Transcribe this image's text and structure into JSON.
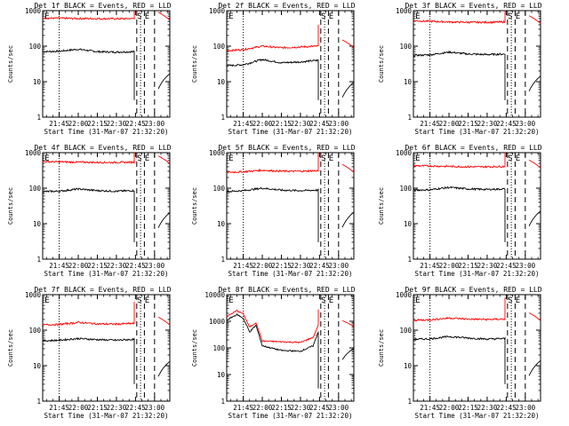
{
  "figure": {
    "x_label": "Start Time (31-Mar-07 21:32:20)",
    "y_label": "Counts/sec",
    "marker_labels": [
      "E",
      "S",
      "E"
    ]
  },
  "colors": {
    "events": "#000000",
    "lld": "#ff0000",
    "axes": "#000000"
  },
  "chart_data": [
    {
      "type": "line",
      "title": "Det 1f BLACK = Events, RED = LLD",
      "ylim": [
        1,
        1000
      ],
      "yscale": "log",
      "y_ticks": [
        "1",
        "10",
        "100",
        "1000"
      ],
      "x_ticks": [
        "21:45",
        "22:00",
        "22:15",
        "22:30",
        "22:45",
        "23:00"
      ],
      "xlim": [
        "21:32",
        "23:12"
      ],
      "vlines_dashed": [
        "22:46",
        "22:52",
        "23:00"
      ],
      "vline_dotted": [
        "21:45",
        "22:49"
      ],
      "series": [
        {
          "name": "Events",
          "x": [
            "21:32",
            "21:45",
            "22:00",
            "22:15",
            "22:30",
            "22:44"
          ],
          "values": [
            70,
            72,
            82,
            70,
            68,
            70
          ]
        },
        {
          "name": "LLD",
          "x": [
            "21:32",
            "21:45",
            "22:00",
            "22:15",
            "22:30",
            "22:44"
          ],
          "values": [
            620,
            610,
            600,
            595,
            590,
            600
          ]
        }
      ]
    },
    {
      "type": "line",
      "title": "Det 2f BLACK = Events, RED = LLD",
      "ylim": [
        1,
        1000
      ],
      "yscale": "log",
      "y_ticks": [
        "1",
        "10",
        "100",
        "1000"
      ],
      "x_ticks": [
        "21:45",
        "22:00",
        "22:15",
        "22:30",
        "22:45",
        "23:00"
      ],
      "xlim": [
        "21:32",
        "23:12"
      ],
      "vlines_dashed": [
        "22:46",
        "22:52",
        "23:00"
      ],
      "vline_dotted": [
        "21:45",
        "22:49"
      ],
      "series": [
        {
          "name": "Events",
          "x": [
            "21:32",
            "21:45",
            "22:00",
            "22:15",
            "22:30",
            "22:44"
          ],
          "values": [
            28,
            30,
            42,
            34,
            36,
            40
          ]
        },
        {
          "name": "LLD",
          "x": [
            "21:32",
            "21:45",
            "22:00",
            "22:15",
            "22:30",
            "22:44"
          ],
          "values": [
            75,
            80,
            100,
            90,
            95,
            100
          ]
        }
      ]
    },
    {
      "type": "line",
      "title": "Det 3f BLACK = Events, RED = LLD",
      "ylim": [
        1,
        1000
      ],
      "yscale": "log",
      "y_ticks": [
        "1",
        "10",
        "100",
        "1000"
      ],
      "x_ticks": [
        "21:45",
        "22:00",
        "22:15",
        "22:30",
        "22:45",
        "23:00"
      ],
      "xlim": [
        "21:32",
        "23:12"
      ],
      "vlines_dashed": [
        "22:46",
        "22:52",
        "23:00"
      ],
      "vline_dotted": [
        "21:45",
        "22:49"
      ],
      "series": [
        {
          "name": "Events",
          "x": [
            "21:32",
            "21:45",
            "22:00",
            "22:15",
            "22:30",
            "22:44"
          ],
          "values": [
            55,
            57,
            68,
            60,
            58,
            60
          ]
        },
        {
          "name": "LLD",
          "x": [
            "21:32",
            "21:45",
            "22:00",
            "22:15",
            "22:30",
            "22:44"
          ],
          "values": [
            520,
            500,
            480,
            470,
            470,
            480
          ]
        }
      ]
    },
    {
      "type": "line",
      "title": "Det 4f BLACK = Events, RED = LLD",
      "ylim": [
        1,
        1000
      ],
      "yscale": "log",
      "y_ticks": [
        "1",
        "10",
        "100",
        "1000"
      ],
      "x_ticks": [
        "21:45",
        "22:00",
        "22:15",
        "22:30",
        "22:45",
        "23:00"
      ],
      "xlim": [
        "21:32",
        "23:12"
      ],
      "vlines_dashed": [
        "22:46",
        "22:52",
        "23:00"
      ],
      "vline_dotted": [
        "21:45",
        "22:49"
      ],
      "series": [
        {
          "name": "Events",
          "x": [
            "21:32",
            "21:45",
            "22:00",
            "22:15",
            "22:30",
            "22:44"
          ],
          "values": [
            80,
            82,
            95,
            85,
            82,
            85
          ]
        },
        {
          "name": "LLD",
          "x": [
            "21:32",
            "21:45",
            "22:00",
            "22:15",
            "22:30",
            "22:44"
          ],
          "values": [
            560,
            550,
            540,
            530,
            530,
            540
          ]
        }
      ]
    },
    {
      "type": "line",
      "title": "Det 5f BLACK = Events, RED = LLD",
      "ylim": [
        1,
        1000
      ],
      "yscale": "log",
      "y_ticks": [
        "1",
        "10",
        "100",
        "1000"
      ],
      "x_ticks": [
        "21:45",
        "22:00",
        "22:15",
        "22:30",
        "22:45",
        "23:00"
      ],
      "xlim": [
        "21:32",
        "23:12"
      ],
      "vlines_dashed": [
        "22:46",
        "22:52",
        "23:00"
      ],
      "vline_dotted": [
        "21:45",
        "22:49"
      ],
      "series": [
        {
          "name": "Events",
          "x": [
            "21:32",
            "21:45",
            "22:00",
            "22:15",
            "22:30",
            "22:44"
          ],
          "values": [
            80,
            85,
            100,
            88,
            85,
            88
          ]
        },
        {
          "name": "LLD",
          "x": [
            "21:32",
            "21:45",
            "22:00",
            "22:15",
            "22:30",
            "22:44"
          ],
          "values": [
            280,
            290,
            320,
            300,
            300,
            310
          ]
        }
      ]
    },
    {
      "type": "line",
      "title": "Det 6f BLACK = Events, RED = LLD",
      "ylim": [
        1,
        1000
      ],
      "yscale": "log",
      "y_ticks": [
        "1",
        "10",
        "100",
        "1000"
      ],
      "x_ticks": [
        "21:45",
        "22:00",
        "22:15",
        "22:30",
        "22:45",
        "23:00"
      ],
      "xlim": [
        "21:32",
        "23:12"
      ],
      "vlines_dashed": [
        "22:46",
        "22:52",
        "23:00"
      ],
      "vline_dotted": [
        "21:45",
        "22:49"
      ],
      "series": [
        {
          "name": "Events",
          "x": [
            "21:32",
            "21:45",
            "22:00",
            "22:15",
            "22:30",
            "22:44"
          ],
          "values": [
            88,
            90,
            105,
            95,
            92,
            95
          ]
        },
        {
          "name": "LLD",
          "x": [
            "21:32",
            "21:45",
            "22:00",
            "22:15",
            "22:30",
            "22:44"
          ],
          "values": [
            430,
            420,
            410,
            400,
            400,
            410
          ]
        }
      ]
    },
    {
      "type": "line",
      "title": "Det 7f BLACK = Events, RED = LLD",
      "ylim": [
        1,
        1000
      ],
      "yscale": "log",
      "y_ticks": [
        "1",
        "10",
        "100",
        "1000"
      ],
      "x_ticks": [
        "21:45",
        "22:00",
        "22:15",
        "22:30",
        "22:45",
        "23:00"
      ],
      "xlim": [
        "21:32",
        "23:12"
      ],
      "vlines_dashed": [
        "22:46",
        "22:52",
        "23:00"
      ],
      "vline_dotted": [
        "21:45",
        "22:49"
      ],
      "series": [
        {
          "name": "Events",
          "x": [
            "21:32",
            "21:45",
            "22:00",
            "22:15",
            "22:30",
            "22:44"
          ],
          "values": [
            50,
            52,
            58,
            54,
            52,
            55
          ]
        },
        {
          "name": "LLD",
          "x": [
            "21:32",
            "21:45",
            "22:00",
            "22:15",
            "22:30",
            "22:44"
          ],
          "values": [
            140,
            145,
            165,
            150,
            148,
            155
          ]
        }
      ]
    },
    {
      "type": "line",
      "title": "Det 8f BLACK = Events, RED = LLD",
      "ylim": [
        1,
        10000
      ],
      "yscale": "log",
      "y_ticks": [
        "1",
        "10",
        "100",
        "1000",
        "10000"
      ],
      "x_ticks": [
        "21:45",
        "22:00",
        "22:15",
        "22:30",
        "22:45",
        "23:00"
      ],
      "xlim": [
        "21:32",
        "23:12"
      ],
      "vlines_dashed": [
        "22:46",
        "22:52",
        "23:00"
      ],
      "vline_dotted": [
        "21:45",
        "22:49"
      ],
      "series": [
        {
          "name": "Events",
          "x": [
            "21:32",
            "21:40",
            "21:45",
            "21:50",
            "21:55",
            "22:00",
            "22:15",
            "22:30",
            "22:40",
            "22:44"
          ],
          "values": [
            1100,
            1800,
            1300,
            400,
            700,
            120,
            80,
            75,
            120,
            400
          ]
        },
        {
          "name": "LLD",
          "x": [
            "21:32",
            "21:40",
            "21:45",
            "21:50",
            "21:55",
            "22:00",
            "22:15",
            "22:30",
            "22:40",
            "22:44"
          ],
          "values": [
            1500,
            2500,
            1900,
            600,
            900,
            180,
            170,
            160,
            250,
            700
          ]
        }
      ]
    },
    {
      "type": "line",
      "title": "Det 9f BLACK = Events, RED = LLD",
      "ylim": [
        1,
        1000
      ],
      "yscale": "log",
      "y_ticks": [
        "1",
        "10",
        "100",
        "1000"
      ],
      "x_ticks": [
        "21:45",
        "22:00",
        "22:15",
        "22:30",
        "22:45",
        "23:00"
      ],
      "xlim": [
        "21:32",
        "23:12"
      ],
      "vlines_dashed": [
        "22:46",
        "22:52",
        "23:00"
      ],
      "vline_dotted": [
        "21:45",
        "22:49"
      ],
      "series": [
        {
          "name": "Events",
          "x": [
            "21:32",
            "21:45",
            "22:00",
            "22:15",
            "22:30",
            "22:44"
          ],
          "values": [
            55,
            57,
            66,
            60,
            56,
            58
          ]
        },
        {
          "name": "LLD",
          "x": [
            "21:32",
            "21:45",
            "22:00",
            "22:15",
            "22:30",
            "22:44"
          ],
          "values": [
            190,
            195,
            220,
            205,
            200,
            205
          ]
        }
      ]
    }
  ]
}
